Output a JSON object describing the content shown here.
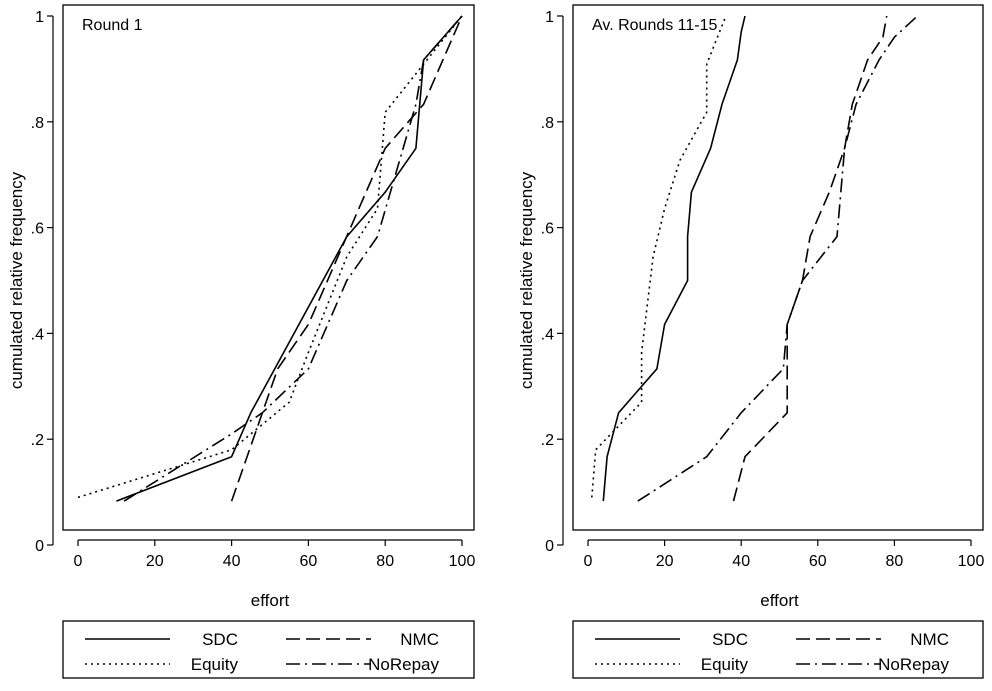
{
  "chart_data": [
    {
      "type": "line",
      "title": "Round 1",
      "xlabel": "effort",
      "ylabel": "cumulated relative frequency",
      "xlim": [
        0,
        100
      ],
      "ylim": [
        0,
        1
      ],
      "x_ticks": [
        "0",
        "20",
        "40",
        "60",
        "80",
        "100"
      ],
      "y_ticks": [
        "0",
        ".2",
        ".4",
        ".6",
        ".8",
        "1"
      ],
      "grid": false,
      "legend_position": "bottom",
      "series": [
        {
          "name": "SDC",
          "dash": "solid",
          "points": [
            [
              10,
              0.083
            ],
            [
              40,
              0.167
            ],
            [
              45,
              0.25
            ],
            [
              70,
              0.583
            ],
            [
              80,
              0.667
            ],
            [
              88,
              0.75
            ],
            [
              90,
              0.917
            ],
            [
              100,
              1.0
            ]
          ]
        },
        {
          "name": "NMC",
          "dash": "dash",
          "points": [
            [
              40,
              0.083
            ],
            [
              52,
              0.333
            ],
            [
              60,
              0.417
            ],
            [
              75,
              0.667
            ],
            [
              80,
              0.75
            ],
            [
              90,
              0.833
            ],
            [
              100,
              1.0
            ]
          ]
        },
        {
          "name": "Equity",
          "dash": "dot",
          "points": [
            [
              0,
              0.09
            ],
            [
              40,
              0.18
            ],
            [
              55,
              0.27
            ],
            [
              60,
              0.364
            ],
            [
              70,
              0.545
            ],
            [
              78,
              0.636
            ],
            [
              80,
              0.818
            ],
            [
              90,
              0.909
            ],
            [
              100,
              1.0
            ]
          ]
        },
        {
          "name": "NoRepay",
          "dash": "dashdot",
          "points": [
            [
              12,
              0.083
            ],
            [
              40,
              0.21
            ],
            [
              48,
              0.25
            ],
            [
              60,
              0.333
            ],
            [
              70,
              0.5
            ],
            [
              78,
              0.583
            ],
            [
              88,
              0.833
            ],
            [
              90,
              0.917
            ],
            [
              100,
              1.0
            ]
          ]
        }
      ]
    },
    {
      "type": "line",
      "title": "Av. Rounds 11-15",
      "xlabel": "effort",
      "ylabel": "cumulated relative frequency",
      "xlim": [
        0,
        100
      ],
      "ylim": [
        0,
        1
      ],
      "x_ticks": [
        "0",
        "20",
        "40",
        "60",
        "80",
        "100"
      ],
      "y_ticks": [
        "0",
        ".2",
        ".4",
        ".6",
        ".8",
        "1"
      ],
      "grid": false,
      "legend_position": "bottom",
      "series": [
        {
          "name": "SDC",
          "dash": "solid",
          "points": [
            [
              4,
              0.083
            ],
            [
              5,
              0.167
            ],
            [
              8,
              0.25
            ],
            [
              18,
              0.333
            ],
            [
              20,
              0.417
            ],
            [
              26,
              0.5
            ],
            [
              26,
              0.583
            ],
            [
              27,
              0.667
            ],
            [
              32,
              0.75
            ],
            [
              35,
              0.833
            ],
            [
              39,
              0.917
            ],
            [
              40,
              0.97
            ],
            [
              41,
              1.0
            ]
          ]
        },
        {
          "name": "NMC",
          "dash": "dash",
          "points": [
            [
              38,
              0.083
            ],
            [
              41,
              0.167
            ],
            [
              52,
              0.25
            ],
            [
              52,
              0.333
            ],
            [
              52,
              0.417
            ],
            [
              56,
              0.5
            ],
            [
              58,
              0.583
            ],
            [
              63,
              0.667
            ],
            [
              67,
              0.75
            ],
            [
              69,
              0.833
            ],
            [
              73,
              0.917
            ],
            [
              77,
              0.96
            ],
            [
              78,
              1.0
            ]
          ]
        },
        {
          "name": "Equity",
          "dash": "dot",
          "points": [
            [
              1,
              0.09
            ],
            [
              2,
              0.18
            ],
            [
              14,
              0.27
            ],
            [
              14,
              0.364
            ],
            [
              17,
              0.545
            ],
            [
              20,
              0.636
            ],
            [
              24,
              0.727
            ],
            [
              31,
              0.818
            ],
            [
              31,
              0.909
            ],
            [
              36,
              1.0
            ]
          ]
        },
        {
          "name": "NoRepay",
          "dash": "dashdot",
          "points": [
            [
              13,
              0.083
            ],
            [
              31,
              0.167
            ],
            [
              40,
              0.25
            ],
            [
              51,
              0.333
            ],
            [
              52,
              0.417
            ],
            [
              56,
              0.5
            ],
            [
              65,
              0.583
            ],
            [
              67,
              0.75
            ],
            [
              70,
              0.833
            ],
            [
              76,
              0.917
            ],
            [
              80,
              0.96
            ],
            [
              86,
              1.0
            ]
          ]
        }
      ]
    }
  ],
  "legend": {
    "items": [
      {
        "label": "SDC",
        "dash": "solid"
      },
      {
        "label": "NMC",
        "dash": "dash"
      },
      {
        "label": "Equity",
        "dash": "dot"
      },
      {
        "label": "NoRepay",
        "dash": "dashdot"
      }
    ]
  }
}
